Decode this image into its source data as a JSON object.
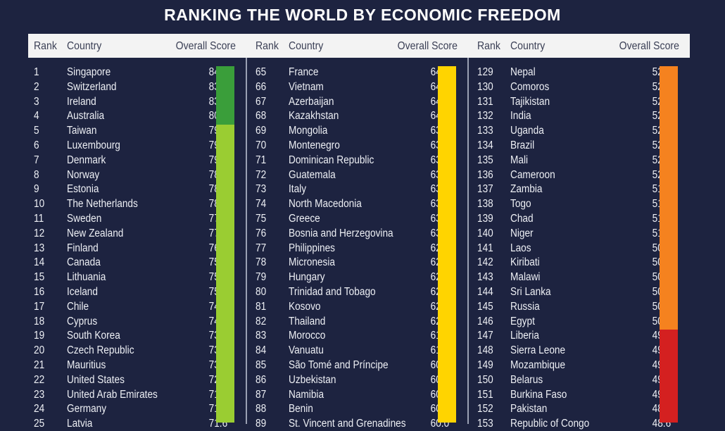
{
  "title": "RANKING THE WORLD BY ECONOMIC FREEDOM",
  "headers": {
    "rank": "Rank",
    "country": "Country",
    "score": "Overall Score"
  },
  "colors": {
    "background": "#1d2340",
    "mostly_free_high": "#3a9e3a",
    "mostly_free": "#9acd32",
    "moderately_free": "#ffd400",
    "mostly_unfree": "#f5821f",
    "repressed": "#d42020"
  },
  "columns": [
    {
      "rows": [
        [
          "1",
          "Singapore",
          "84.4"
        ],
        [
          "2",
          "Switzerland",
          "83.7"
        ],
        [
          "3",
          "Ireland",
          "83.3"
        ],
        [
          "4",
          "Australia",
          "80.1"
        ],
        [
          "5",
          "Taiwan",
          "79.8"
        ],
        [
          "6",
          "Luxembourg",
          "79.7"
        ],
        [
          "7",
          "Denmark",
          "79.0"
        ],
        [
          "8",
          "Norway",
          "78.8"
        ],
        [
          "9",
          "Estonia",
          "78.7"
        ],
        [
          "10",
          "The Netherlands",
          "78.5"
        ],
        [
          "11",
          "Sweden",
          "77.8"
        ],
        [
          "12",
          "New Zealand",
          "77.8"
        ],
        [
          "13",
          "Finland",
          "76.6"
        ],
        [
          "14",
          "Canada",
          "75.6"
        ],
        [
          "15",
          "Lithuania",
          "75.3"
        ],
        [
          "16",
          "Iceland",
          "75.0"
        ],
        [
          "17",
          "Chile",
          "74.3"
        ],
        [
          "18",
          "Cyprus",
          "74.1"
        ],
        [
          "19",
          "South Korea",
          "73.7"
        ],
        [
          "20",
          "Czech Republic",
          "73.2"
        ],
        [
          "21",
          "Mauritius",
          "73.0"
        ],
        [
          "22",
          "United States",
          "72.8"
        ],
        [
          "23",
          "United Arab Emirates",
          "71.9"
        ],
        [
          "24",
          "Germany",
          "71.7"
        ],
        [
          "25",
          "Latvia",
          "71.6"
        ]
      ],
      "bands": [
        {
          "from": 0,
          "to": 4,
          "color": "#3a9e3a"
        },
        {
          "from": 4,
          "to": 25,
          "color": "#9acd32"
        }
      ]
    },
    {
      "rows": [
        [
          "65",
          "France",
          "64.6"
        ],
        [
          "66",
          "Vietnam",
          "64.4"
        ],
        [
          "67",
          "Azerbaijan",
          "64.3"
        ],
        [
          "68",
          "Kazakhstan",
          "64.2"
        ],
        [
          "69",
          "Mongolia",
          "63.9"
        ],
        [
          "70",
          "Montenegro",
          "63.8"
        ],
        [
          "71",
          "Dominican Republic",
          "63.8"
        ],
        [
          "72",
          "Guatemala",
          "63.5"
        ],
        [
          "73",
          "Italy",
          "63.3"
        ],
        [
          "74",
          "North Macedonia",
          "63.3"
        ],
        [
          "75",
          "Greece",
          "63.2"
        ],
        [
          "76",
          "Bosnia and Herzegovina",
          "63.1"
        ],
        [
          "77",
          "Philippines",
          "62.9"
        ],
        [
          "78",
          "Micronesia",
          "62.9"
        ],
        [
          "79",
          "Hungary",
          "62.5"
        ],
        [
          "80",
          "Trinidad and Tobago",
          "62.4"
        ],
        [
          "81",
          "Kosovo",
          "62.4"
        ],
        [
          "82",
          "Thailand",
          "62.2"
        ],
        [
          "83",
          "Morocco",
          "61.8"
        ],
        [
          "84",
          "Vanuatu",
          "61.1"
        ],
        [
          "85",
          "São Tomé and Príncipe",
          "60.6"
        ],
        [
          "86",
          "Uzbekistan",
          "60.3"
        ],
        [
          "87",
          "Namibia",
          "60.2"
        ],
        [
          "88",
          "Benin",
          "60.0"
        ],
        [
          "89",
          "St. Vincent and Grenadines",
          "60.0"
        ]
      ],
      "bands": [
        {
          "from": 0,
          "to": 25,
          "color": "#ffd400"
        }
      ]
    },
    {
      "rows": [
        [
          "129",
          "Nepal",
          "52.9"
        ],
        [
          "130",
          "Comoros",
          "52.7"
        ],
        [
          "131",
          "Tajikistan",
          "52.5"
        ],
        [
          "132",
          "India",
          "52.5"
        ],
        [
          "133",
          "Uganda",
          "52.4"
        ],
        [
          "134",
          "Brazil",
          "52.4"
        ],
        [
          "135",
          "Mali",
          "52.1"
        ],
        [
          "136",
          "Cameroon",
          "52.0"
        ],
        [
          "137",
          "Zambia",
          "51.9"
        ],
        [
          "138",
          "Togo",
          "51.6"
        ],
        [
          "139",
          "Chad",
          "51.2"
        ],
        [
          "140",
          "Niger",
          "51.0"
        ],
        [
          "141",
          "Laos",
          "50.9"
        ],
        [
          "142",
          "Kiribati",
          "50.8"
        ],
        [
          "143",
          "Malawi",
          "50.7"
        ],
        [
          "144",
          "Sri Lanka",
          "50.3"
        ],
        [
          "145",
          "Russia",
          "50.3"
        ],
        [
          "146",
          "Egypt",
          "50.3"
        ],
        [
          "147",
          "Liberia",
          "49.8"
        ],
        [
          "148",
          "Sierra Leone",
          "49.6"
        ],
        [
          "149",
          "Mozambique",
          "49.6"
        ],
        [
          "150",
          "Belarus",
          "49.1"
        ],
        [
          "151",
          "Burkina Faso",
          "49.1"
        ],
        [
          "152",
          "Pakistan",
          "48.9"
        ],
        [
          "153",
          "Republic of Congo",
          "48.6"
        ]
      ],
      "bands": [
        {
          "from": 0,
          "to": 18,
          "color": "#f5821f"
        },
        {
          "from": 18,
          "to": 25,
          "color": "#d42020"
        }
      ]
    }
  ]
}
